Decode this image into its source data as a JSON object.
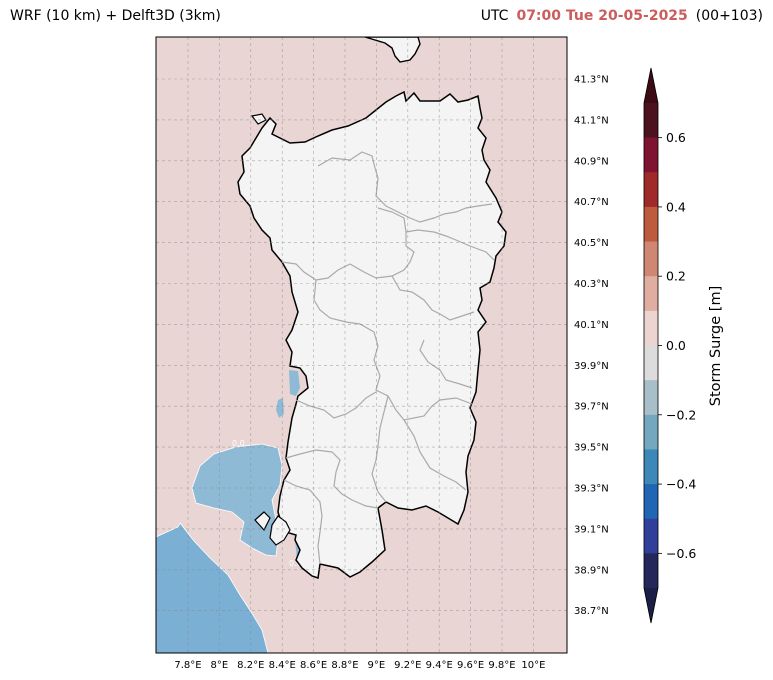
{
  "header": {
    "model_title": "WRF (10 km) + Delft3D (3km)",
    "utc_label": "UTC",
    "datetime": "07:00 Tue 20-05-2025",
    "forecast_step": "(00+103)"
  },
  "map": {
    "region": "Sardinia",
    "lat_labels": [
      "41.3°N",
      "41.1°N",
      "40.9°N",
      "40.7°N",
      "40.5°N",
      "40.3°N",
      "40.1°N",
      "39.9°N",
      "39.7°N",
      "39.5°N",
      "39.3°N",
      "39.1°N",
      "38.9°N",
      "38.7°N"
    ],
    "lon_labels": [
      "7.8°E",
      "8°E",
      "8.2°E",
      "8.4°E",
      "8.6°E",
      "8.8°E",
      "9°E",
      "9.2°E",
      "9.4°E",
      "9.6°E",
      "9.8°E",
      "10°E"
    ],
    "sea_surge_color": "#e9d6d4",
    "land_color": "#f4f4f4",
    "negative_surge_color": "#8fbad6",
    "strong_negative_surge_color": "#7bafd4",
    "contour_labels": [
      "0.0",
      "0.0"
    ]
  },
  "colorbar": {
    "label": "Storm Surge [m]",
    "ticks": [
      "0.6",
      "0.4",
      "0.2",
      "0.0",
      "−0.2",
      "−0.4",
      "−0.6"
    ],
    "tick_values": [
      0.6,
      0.4,
      0.2,
      0.0,
      -0.2,
      -0.4,
      -0.6
    ],
    "range": [
      -0.7,
      0.7
    ],
    "step": 0.1,
    "colors": [
      "#4d1220",
      "#7e1430",
      "#a02a2a",
      "#be5a3e",
      "#cf8672",
      "#dfaea0",
      "#ecd5d1",
      "#dcdcdc",
      "#a8bfc9",
      "#73a8c0",
      "#3c88b8",
      "#1f66b4",
      "#2f3f9a",
      "#24275a"
    ],
    "over_color": "#3d0b14",
    "under_color": "#1b1e46",
    "extend": "both"
  }
}
